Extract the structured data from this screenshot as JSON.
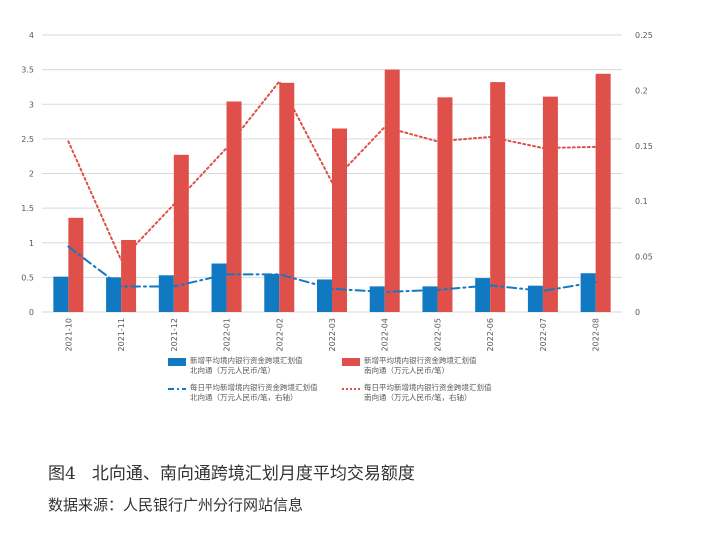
{
  "chart_data": {
    "type": "bar",
    "title": "北向通、南向通跨境汇划月度平均交易额度",
    "figure_label": "图4",
    "source": "数据来源：人民银行广州分行网站信息",
    "categories": [
      "2021-10",
      "2021-11",
      "2021-12",
      "2022-01",
      "2022-02",
      "2022-03",
      "2022-04",
      "2022-05",
      "2022-06",
      "2022-07",
      "2022-08"
    ],
    "y_left": {
      "lim": [
        0,
        4
      ],
      "ticks": [
        "0",
        "0.5",
        "1",
        "1.5",
        "2",
        "2.5",
        "3",
        "3.5",
        "4"
      ]
    },
    "y_right": {
      "lim": [
        0,
        0.25
      ],
      "ticks": [
        "0",
        "0.05",
        "0.1",
        "0.15",
        "0.2",
        "0.25"
      ]
    },
    "grid": true,
    "legend_position": "bottom",
    "series": [
      {
        "name": "新增平均境内银行资金跨境汇划值",
        "name_line2": "北向通（万元人民币/笔）",
        "kind": "bar",
        "axis": "left",
        "color": "#1179c2",
        "values": [
          0.51,
          0.5,
          0.53,
          0.7,
          0.55,
          0.47,
          0.37,
          0.37,
          0.49,
          0.38,
          0.56
        ]
      },
      {
        "name": "新增平均境内银行资金跨境汇划值",
        "name_line2": "南向通（万元人民币/笔）",
        "kind": "bar",
        "axis": "left",
        "color": "#e0504a",
        "values": [
          1.36,
          1.04,
          2.27,
          3.04,
          3.31,
          2.65,
          3.5,
          3.1,
          3.32,
          3.11,
          3.44
        ]
      },
      {
        "name": "每日平均新增境内银行资金跨境汇划值",
        "name_line2": "北向通（万元人民币/笔，右轴）",
        "kind": "line",
        "style": "dashdot",
        "axis": "right",
        "color": "#1179c2",
        "values": [
          0.059,
          0.023,
          0.023,
          0.034,
          0.034,
          0.021,
          0.018,
          0.02,
          0.024,
          0.019,
          0.027
        ]
      },
      {
        "name": "每日平均新增境内银行资金跨境汇划值",
        "name_line2": "南向通（万元人民币/笔，右轴）",
        "kind": "line",
        "style": "dotted",
        "axis": "right",
        "color": "#e0504a",
        "values": [
          0.154,
          0.047,
          0.097,
          0.148,
          0.208,
          0.117,
          0.167,
          0.154,
          0.158,
          0.148,
          0.149
        ]
      }
    ]
  }
}
